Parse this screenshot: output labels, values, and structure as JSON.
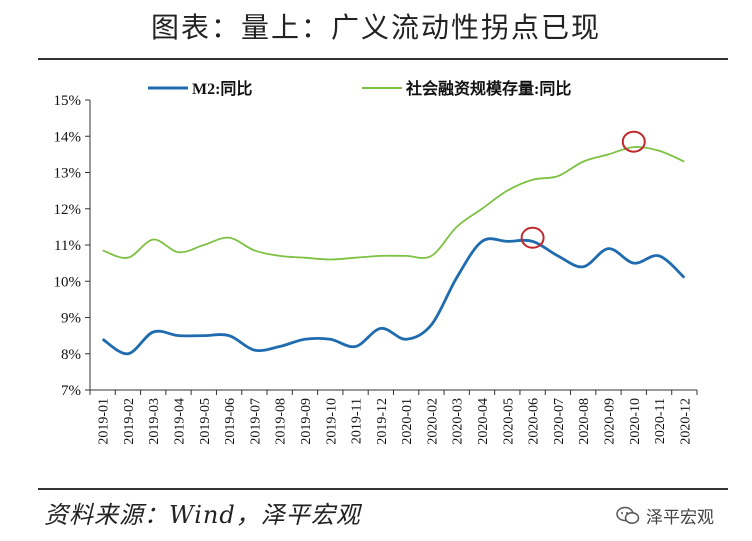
{
  "header": {
    "title": "图表：量上：广义流动性拐点已现"
  },
  "footer": {
    "source": "资料来源：Wind，泽平宏观",
    "watermark": "泽平宏观",
    "watermark_icon": "wechat-icon"
  },
  "chart_data": {
    "type": "line",
    "categories": [
      "2019-01",
      "2019-02",
      "2019-03",
      "2019-04",
      "2019-05",
      "2019-06",
      "2019-07",
      "2019-08",
      "2019-09",
      "2019-10",
      "2019-11",
      "2019-12",
      "2020-01",
      "2020-02",
      "2020-03",
      "2020-04",
      "2020-05",
      "2020-06",
      "2020-07",
      "2020-08",
      "2020-09",
      "2020-10",
      "2020-11",
      "2020-12"
    ],
    "y_ticks": [
      "7%",
      "8%",
      "9%",
      "10%",
      "11%",
      "12%",
      "13%",
      "14%",
      "15%"
    ],
    "ylim": [
      7,
      15
    ],
    "grid": false,
    "legend": "top",
    "series": [
      {
        "name": "M2:同比",
        "color": "#1F6BB0",
        "values": [
          8.4,
          8.0,
          8.6,
          8.5,
          8.5,
          8.5,
          8.1,
          8.2,
          8.4,
          8.4,
          8.2,
          8.7,
          8.4,
          8.8,
          10.1,
          11.1,
          11.1,
          11.1,
          10.7,
          10.4,
          10.9,
          10.5,
          10.7,
          10.1
        ]
      },
      {
        "name": "社会融资规模存量:同比",
        "color": "#7DC142",
        "values": [
          10.85,
          10.65,
          11.15,
          10.8,
          11.0,
          11.2,
          10.85,
          10.7,
          10.65,
          10.6,
          10.65,
          10.7,
          10.7,
          10.7,
          11.5,
          12.0,
          12.5,
          12.8,
          12.9,
          13.3,
          13.5,
          13.7,
          13.6,
          13.3
        ]
      }
    ],
    "annotations": [
      {
        "type": "circle",
        "x": "2020-06",
        "y": 11.2,
        "color": "#C0282B"
      },
      {
        "type": "circle",
        "x": "2020-10",
        "y": 13.85,
        "color": "#C0282B"
      }
    ]
  }
}
